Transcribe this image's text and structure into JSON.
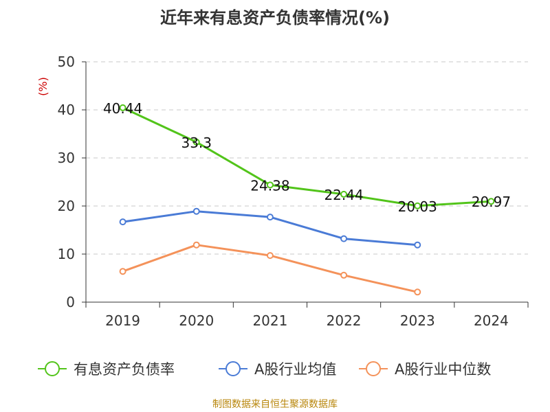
{
  "chart_data": {
    "type": "line",
    "title": "近年来有息资产负债率情况(%)",
    "ylabel": "(%)",
    "xlabel": "",
    "categories": [
      "2019",
      "2020",
      "2021",
      "2022",
      "2023",
      "2024"
    ],
    "ylim": [
      0,
      50
    ],
    "yticks": [
      0,
      10,
      20,
      30,
      40,
      50
    ],
    "grid": true,
    "legend_position": "bottom",
    "series": [
      {
        "name": "有息资产负债率",
        "color": "#52c41a",
        "values": [
          40.44,
          33.3,
          24.38,
          22.44,
          20.03,
          20.97
        ],
        "labels": [
          "40.44",
          "33.3",
          "24.38",
          "22.44",
          "20.03",
          "20.97"
        ]
      },
      {
        "name": "A股行业均值",
        "color": "#4a7bd6",
        "values": [
          16.7,
          18.9,
          17.7,
          13.2,
          11.9,
          null
        ]
      },
      {
        "name": "A股行业中位数",
        "color": "#f4925a",
        "values": [
          6.4,
          11.9,
          9.7,
          5.6,
          2.1,
          null
        ]
      }
    ]
  },
  "source_note": "制图数据来自恒生聚源数据库"
}
